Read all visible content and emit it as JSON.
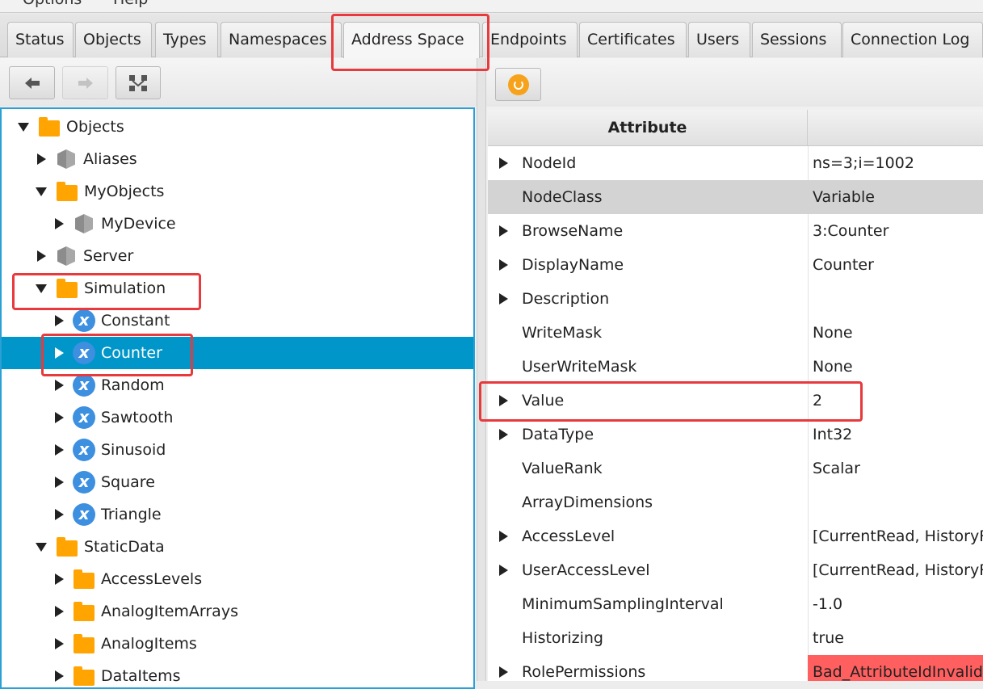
{
  "menu": [
    "Options",
    "Help"
  ],
  "tabs": [
    {
      "label": "Status"
    },
    {
      "label": "Objects"
    },
    {
      "label": "Types"
    },
    {
      "label": "Namespaces"
    },
    {
      "label": "Address Space",
      "active": true
    },
    {
      "label": "Endpoints"
    },
    {
      "label": "Certificates"
    },
    {
      "label": "Users"
    },
    {
      "label": "Sessions"
    },
    {
      "label": "Connection Log"
    }
  ],
  "toolbar": {
    "back": "arrow-left-icon",
    "forward": "arrow-right-icon",
    "browse": "hierarchy-icon",
    "refresh": "refresh-icon"
  },
  "tree": [
    {
      "label": "Objects",
      "level": 0,
      "icon": "folder",
      "expanded": true
    },
    {
      "label": "Aliases",
      "level": 1,
      "icon": "object",
      "expanded": false
    },
    {
      "label": "MyObjects",
      "level": 1,
      "icon": "folder",
      "expanded": true
    },
    {
      "label": "MyDevice",
      "level": 2,
      "icon": "object",
      "expanded": false
    },
    {
      "label": "Server",
      "level": 1,
      "icon": "object",
      "expanded": false
    },
    {
      "label": "Simulation",
      "level": 1,
      "icon": "folder",
      "expanded": true
    },
    {
      "label": "Constant",
      "level": 2,
      "icon": "variable",
      "expanded": false
    },
    {
      "label": "Counter",
      "level": 2,
      "icon": "variable",
      "expanded": false,
      "selected": true
    },
    {
      "label": "Random",
      "level": 2,
      "icon": "variable",
      "expanded": false
    },
    {
      "label": "Sawtooth",
      "level": 2,
      "icon": "variable",
      "expanded": false
    },
    {
      "label": "Sinusoid",
      "level": 2,
      "icon": "variable",
      "expanded": false
    },
    {
      "label": "Square",
      "level": 2,
      "icon": "variable",
      "expanded": false
    },
    {
      "label": "Triangle",
      "level": 2,
      "icon": "variable",
      "expanded": false
    },
    {
      "label": "StaticData",
      "level": 1,
      "icon": "folder",
      "expanded": true
    },
    {
      "label": "AccessLevels",
      "level": 2,
      "icon": "folder",
      "expanded": false
    },
    {
      "label": "AnalogItemArrays",
      "level": 2,
      "icon": "folder",
      "expanded": false
    },
    {
      "label": "AnalogItems",
      "level": 2,
      "icon": "folder",
      "expanded": false
    },
    {
      "label": "DataItems",
      "level": 2,
      "icon": "folder",
      "expanded": false
    }
  ],
  "attributes": {
    "header": {
      "attribute": "Attribute",
      "value": ""
    },
    "rows": [
      {
        "name": "NodeId",
        "value": "ns=3;i=1002",
        "expandable": true
      },
      {
        "name": "NodeClass",
        "value": "Variable",
        "expandable": false,
        "selected": true
      },
      {
        "name": "BrowseName",
        "value": "3:Counter",
        "expandable": true
      },
      {
        "name": "DisplayName",
        "value": "Counter",
        "expandable": true
      },
      {
        "name": "Description",
        "value": "",
        "expandable": true
      },
      {
        "name": "WriteMask",
        "value": "None",
        "expandable": false
      },
      {
        "name": "UserWriteMask",
        "value": "None",
        "expandable": false
      },
      {
        "name": "Value",
        "value": "2",
        "expandable": true
      },
      {
        "name": "DataType",
        "value": "Int32",
        "expandable": true
      },
      {
        "name": "ValueRank",
        "value": "Scalar",
        "expandable": false
      },
      {
        "name": "ArrayDimensions",
        "value": "",
        "expandable": false
      },
      {
        "name": "AccessLevel",
        "value": "[CurrentRead, HistoryRead]",
        "expandable": true
      },
      {
        "name": "UserAccessLevel",
        "value": "[CurrentRead, HistoryRead]",
        "expandable": true
      },
      {
        "name": "MinimumSamplingInterval",
        "value": "-1.0",
        "expandable": false
      },
      {
        "name": "Historizing",
        "value": "true",
        "expandable": false
      },
      {
        "name": "RolePermissions",
        "value": "Bad_AttributeIdInvalid",
        "expandable": true,
        "error": true
      }
    ]
  },
  "colors": {
    "selection": "#0096c9",
    "error": "#ff5f5f",
    "folder": "#ffa400",
    "annotation": "#e8393c"
  }
}
